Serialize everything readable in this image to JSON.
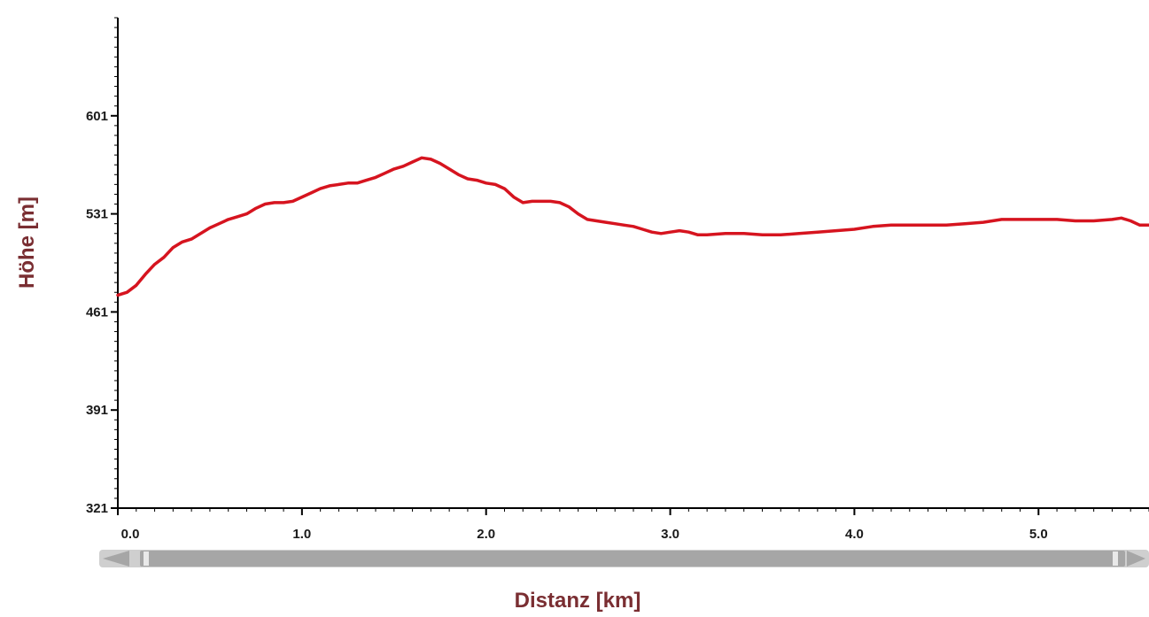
{
  "colors": {
    "line": "#d6141f",
    "axis_title": "#7a2e32",
    "axis": "#000000",
    "scrollbar_track": "#cfcfcf",
    "scrollbar_thumb": "#a6a6a6"
  },
  "chart_data": {
    "type": "line",
    "title": "",
    "xlabel": "Distanz [km]",
    "ylabel": "Höhe [m]",
    "xlim": [
      0,
      5.6
    ],
    "ylim": [
      321,
      671
    ],
    "x_ticks": [
      0.0,
      1.0,
      2.0,
      3.0,
      4.0,
      5.0
    ],
    "x_tick_labels": [
      "0.0",
      "1.0",
      "2.0",
      "3.0",
      "4.0",
      "5.0"
    ],
    "y_ticks": [
      321,
      391,
      461,
      531,
      601
    ],
    "y_tick_labels": [
      "321",
      "391",
      "461",
      "531",
      "601"
    ],
    "grid": false,
    "legend": "none",
    "series": [
      {
        "x": [
          0.0,
          0.05,
          0.1,
          0.15,
          0.2,
          0.25,
          0.3,
          0.35,
          0.4,
          0.45,
          0.5,
          0.55,
          0.6,
          0.65,
          0.7,
          0.75,
          0.8,
          0.85,
          0.9,
          0.95,
          1.0,
          1.05,
          1.1,
          1.15,
          1.2,
          1.25,
          1.3,
          1.35,
          1.4,
          1.45,
          1.5,
          1.55,
          1.6,
          1.65,
          1.7,
          1.75,
          1.8,
          1.85,
          1.9,
          1.95,
          2.0,
          2.05,
          2.1,
          2.15,
          2.2,
          2.25,
          2.3,
          2.35,
          2.4,
          2.45,
          2.5,
          2.55,
          2.6,
          2.65,
          2.7,
          2.75,
          2.8,
          2.85,
          2.9,
          2.95,
          3.0,
          3.05,
          3.1,
          3.15,
          3.2,
          3.3,
          3.4,
          3.5,
          3.6,
          3.7,
          3.8,
          3.9,
          4.0,
          4.1,
          4.2,
          4.3,
          4.4,
          4.5,
          4.6,
          4.7,
          4.8,
          4.9,
          5.0,
          5.1,
          5.2,
          5.3,
          5.4,
          5.45,
          5.5,
          5.55,
          5.6
        ],
        "y": [
          473,
          475,
          480,
          488,
          495,
          500,
          507,
          511,
          513,
          517,
          521,
          524,
          527,
          529,
          531,
          535,
          538,
          539,
          539,
          540,
          543,
          546,
          549,
          551,
          552,
          553,
          553,
          555,
          557,
          560,
          563,
          565,
          568,
          571,
          570,
          567,
          563,
          559,
          556,
          555,
          553,
          552,
          549,
          543,
          539,
          540,
          540,
          540,
          539,
          536,
          531,
          527,
          526,
          525,
          524,
          523,
          522,
          520,
          518,
          517,
          518,
          519,
          518,
          516,
          516,
          517,
          517,
          516,
          516,
          517,
          518,
          519,
          520,
          522,
          523,
          523,
          523,
          523,
          524,
          525,
          527,
          527,
          527,
          527,
          526,
          526,
          527,
          528,
          526,
          523,
          523
        ]
      }
    ]
  }
}
